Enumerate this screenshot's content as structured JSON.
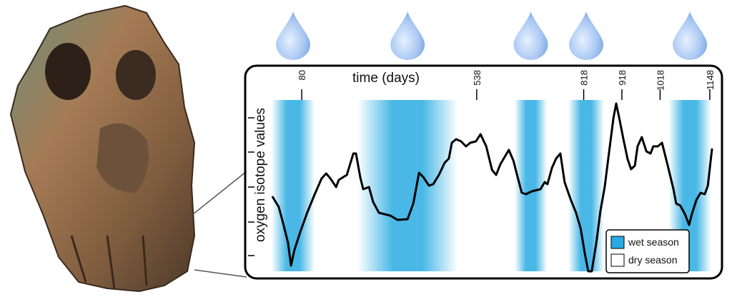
{
  "chart_data": {
    "type": "line",
    "x_label": "time (days)",
    "y_label": "oxygen isotope values",
    "x": [
      3,
      20,
      31,
      44,
      52,
      61,
      76,
      95,
      114,
      132,
      144,
      155,
      170,
      177,
      198,
      215,
      222,
      233,
      241,
      256,
      267,
      282,
      297,
      312,
      331,
      357,
      372,
      387,
      398,
      413,
      424,
      439,
      454,
      465,
      473,
      484,
      497,
      510,
      521,
      536,
      548,
      563,
      578,
      589,
      600,
      611,
      622,
      634,
      645,
      656,
      667,
      682,
      705,
      716,
      723,
      735,
      746,
      757,
      768,
      783,
      798,
      810,
      821,
      830,
      839,
      851,
      862,
      873,
      884,
      896,
      903,
      911,
      922,
      933,
      942,
      952,
      959,
      970,
      982,
      993,
      1000,
      1012,
      1023,
      1038,
      1053,
      1060,
      1071,
      1083,
      1094,
      1101,
      1113,
      1124,
      1135,
      1143,
      1154
    ],
    "values": [
      107,
      92,
      70,
      42,
      10,
      32,
      57,
      85,
      110,
      132,
      139,
      132,
      120,
      130,
      137,
      167,
      167,
      134,
      117,
      120,
      99,
      84,
      82,
      80,
      74,
      75,
      97,
      140,
      134,
      122,
      124,
      137,
      154,
      160,
      182,
      187,
      184,
      177,
      182,
      184,
      194,
      177,
      144,
      137,
      152,
      162,
      172,
      157,
      134,
      112,
      110,
      114,
      117,
      127,
      124,
      147,
      160,
      167,
      127,
      104,
      84,
      62,
      27,
      2,
      2,
      42,
      87,
      120,
      167,
      217,
      237,
      217,
      187,
      159,
      145,
      150,
      177,
      190,
      170,
      167,
      177,
      177,
      182,
      150,
      117,
      97,
      94,
      82,
      67,
      82,
      102,
      112,
      110,
      122,
      174
    ],
    "color": "#000000",
    "xlim": [
      -68,
      1180
    ],
    "xticks": [
      80,
      538,
      818,
      918,
      1018,
      1148
    ],
    "ylim": [
      0,
      242
    ],
    "yticks": [
      24,
      71,
      120,
      169,
      217
    ],
    "wet_seasons": [
      [
        1,
        114
      ],
      [
        226,
        488
      ],
      [
        637,
        722
      ],
      [
        778,
        871
      ],
      [
        1040,
        1152
      ]
    ],
    "legend_position": "lower right",
    "legend": [
      {
        "name": "wet season",
        "color": "#29abe2"
      },
      {
        "name": "dry season",
        "color": "#ffffff"
      }
    ]
  }
}
